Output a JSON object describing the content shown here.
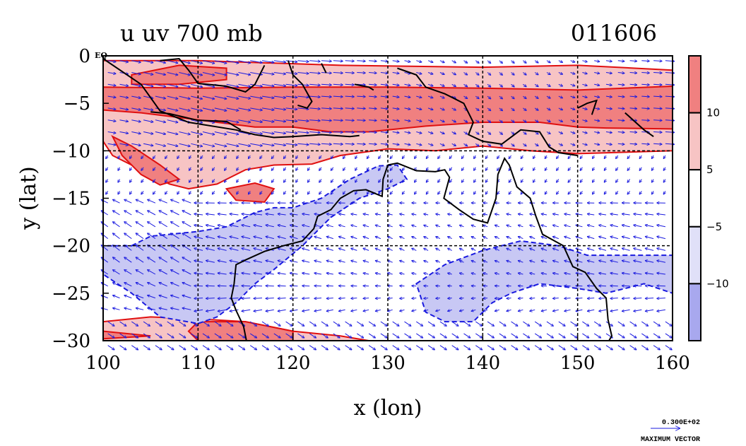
{
  "chart_data": {
    "type": "heatmap",
    "title_left": "u uv 700 mb",
    "title_right": "011606",
    "variable": "u",
    "vector_field": "uv",
    "level": "700 mb",
    "date_code": "011606",
    "xlabel": "x (lon)",
    "ylabel": "y (lat)",
    "xlim": [
      100,
      160
    ],
    "ylim": [
      -30,
      0
    ],
    "x_ticks": [
      100,
      110,
      120,
      130,
      140,
      150,
      160
    ],
    "x_tick_labels": [
      "100",
      "110",
      "120",
      "130",
      "140",
      "150",
      "160"
    ],
    "y_ticks": [
      0,
      -5,
      -10,
      -15,
      -20,
      -25,
      -30
    ],
    "y_tick_labels": [
      "0",
      "−5",
      "−10",
      "−15",
      "−20",
      "−25",
      "−30"
    ],
    "equator_label": "EQ",
    "grid": true,
    "colorbar": {
      "levels": [
        "10",
        "5",
        "−5",
        "−10"
      ],
      "bands": [
        {
          "range": [
            10,
            15
          ],
          "color": "#f08080"
        },
        {
          "range": [
            5,
            10
          ],
          "color": "#f7c4c4"
        },
        {
          "range": [
            -5,
            5
          ],
          "color": "#ffffff"
        },
        {
          "range": [
            -10,
            -5
          ],
          "color": "#e0e0f8"
        },
        {
          "range": [
            -15,
            -10
          ],
          "color": "#a8a8ee"
        }
      ]
    },
    "regions": {
      "easterly_strong": [
        [
          [
            103,
            -20
          ],
          [
            105,
            -19
          ],
          [
            110,
            -18.5
          ],
          [
            113,
            -18
          ],
          [
            116,
            -16.5
          ],
          [
            118,
            -16
          ],
          [
            120,
            -16
          ],
          [
            123,
            -15
          ],
          [
            126,
            -13
          ],
          [
            129,
            -11.6
          ],
          [
            131,
            -11.5
          ],
          [
            132,
            -13
          ],
          [
            130,
            -14
          ],
          [
            127,
            -15
          ],
          [
            124,
            -17
          ],
          [
            121,
            -20
          ],
          [
            118,
            -22.5
          ],
          [
            116,
            -24
          ],
          [
            114,
            -26
          ],
          [
            112,
            -27.5
          ],
          [
            110,
            -28.2
          ],
          [
            106,
            -27.5
          ],
          [
            103,
            -25
          ],
          [
            100,
            -23
          ],
          [
            100,
            -20
          ]
        ],
        [
          [
            133,
            -24
          ],
          [
            136,
            -22
          ],
          [
            140,
            -20.5
          ],
          [
            144,
            -19.5
          ],
          [
            148,
            -20
          ],
          [
            151,
            -21
          ],
          [
            155,
            -21
          ],
          [
            160,
            -21
          ],
          [
            160,
            -25
          ],
          [
            157,
            -24
          ],
          [
            153,
            -25
          ],
          [
            150,
            -24.5
          ],
          [
            146,
            -24
          ],
          [
            143,
            -25
          ],
          [
            141,
            -26
          ],
          [
            139,
            -28
          ],
          [
            136,
            -28
          ],
          [
            134,
            -27
          ]
        ]
      ],
      "easterly_moderate": [
        [
          [
            113,
            -21.5
          ],
          [
            117,
            -18.2
          ],
          [
            120,
            -17
          ],
          [
            123,
            -15.6
          ],
          [
            126,
            -13.6
          ],
          [
            129,
            -12.6
          ],
          [
            130,
            -13
          ],
          [
            127,
            -15
          ],
          [
            124,
            -17
          ],
          [
            121,
            -19.5
          ],
          [
            118,
            -22
          ],
          [
            115,
            -24.5
          ],
          [
            113,
            -23.6
          ]
        ],
        [
          [
            136,
            -26
          ],
          [
            138,
            -24
          ],
          [
            140,
            -23
          ],
          [
            141,
            -25
          ],
          [
            140,
            -27
          ],
          [
            138,
            -28
          ],
          [
            136,
            -27.5
          ]
        ]
      ],
      "westerly_moderate": [
        [
          [
            100,
            -0.5
          ],
          [
            110,
            -0.5
          ],
          [
            125,
            -1
          ],
          [
            140,
            -1.2
          ],
          [
            150,
            -1
          ],
          [
            160,
            -1.5
          ],
          [
            160,
            -10
          ],
          [
            150,
            -10.3
          ],
          [
            145,
            -10
          ],
          [
            140,
            -9.5
          ],
          [
            135,
            -10
          ],
          [
            130,
            -9.8
          ],
          [
            125,
            -10.5
          ],
          [
            122,
            -11.4
          ],
          [
            118,
            -11.5
          ],
          [
            115,
            -12
          ],
          [
            112,
            -13.5
          ],
          [
            109,
            -14
          ],
          [
            107,
            -13.5
          ],
          [
            104,
            -12
          ],
          [
            101,
            -10.5
          ],
          [
            100,
            -9
          ]
        ],
        [
          [
            100,
            -28
          ],
          [
            105,
            -27.5
          ],
          [
            110,
            -27.7
          ],
          [
            115,
            -28
          ],
          [
            120,
            -29
          ],
          [
            125,
            -29.5
          ],
          [
            128,
            -30
          ],
          [
            100,
            -30
          ]
        ]
      ],
      "westerly_strong": [
        [
          [
            103,
            -2
          ],
          [
            108,
            -1
          ],
          [
            113,
            -1.3
          ],
          [
            113,
            -2.5
          ],
          [
            108,
            -3
          ],
          [
            103,
            -3
          ]
        ],
        [
          [
            100,
            -3.3
          ],
          [
            110,
            -3.4
          ],
          [
            120,
            -3.3
          ],
          [
            130,
            -3.3
          ],
          [
            140,
            -3.4
          ],
          [
            150,
            -3.6
          ],
          [
            160,
            -3.2
          ],
          [
            160,
            -7.7
          ],
          [
            153,
            -7.6
          ],
          [
            150,
            -7.5
          ],
          [
            146,
            -7
          ],
          [
            140,
            -7
          ],
          [
            134,
            -7.4
          ],
          [
            128,
            -8
          ],
          [
            124,
            -8
          ],
          [
            120,
            -7.5
          ],
          [
            116,
            -7.5
          ],
          [
            112,
            -7
          ],
          [
            108,
            -6.5
          ],
          [
            104,
            -6
          ],
          [
            100,
            -5.7
          ]
        ],
        [
          [
            101,
            -8.5
          ],
          [
            103,
            -9.5
          ],
          [
            106,
            -11.5
          ],
          [
            108,
            -13
          ],
          [
            106,
            -13.6
          ],
          [
            104,
            -12.5
          ],
          [
            102,
            -10.5
          ]
        ],
        [
          [
            113,
            -14
          ],
          [
            116,
            -13.4
          ],
          [
            118,
            -14
          ],
          [
            117,
            -15.4
          ],
          [
            114,
            -15.2
          ]
        ],
        [
          [
            110,
            -28
          ],
          [
            115,
            -28
          ],
          [
            120,
            -29
          ],
          [
            120,
            -30
          ],
          [
            110,
            -30
          ],
          [
            109,
            -29
          ]
        ],
        [
          [
            100,
            -29
          ],
          [
            105,
            -29.5
          ],
          [
            100,
            -29.8
          ]
        ]
      ]
    },
    "max_vector": {
      "value_label": "0.300E+02",
      "caption": "MAXIMUM VECTOR",
      "magnitude": 30
    }
  }
}
